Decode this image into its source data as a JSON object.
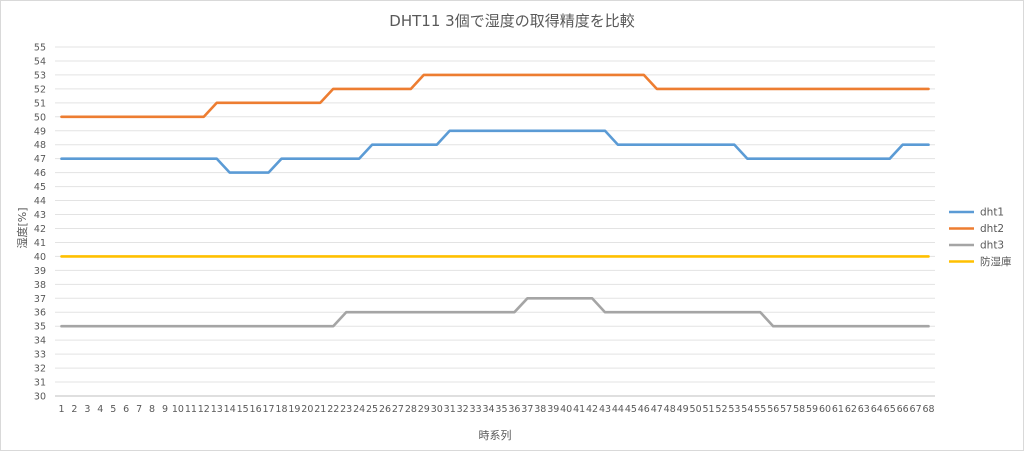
{
  "chart_data": {
    "type": "line",
    "title": "DHT11 3個で湿度の取得精度を比較",
    "xlabel": "時系列",
    "ylabel": "湿度[%]",
    "ylim": [
      30,
      55
    ],
    "ytick_step": 1,
    "grid": true,
    "legend_position": "right",
    "categories": [
      1,
      2,
      3,
      4,
      5,
      6,
      7,
      8,
      9,
      10,
      11,
      12,
      13,
      14,
      15,
      16,
      17,
      18,
      19,
      20,
      21,
      22,
      23,
      24,
      25,
      26,
      27,
      28,
      29,
      30,
      31,
      32,
      33,
      34,
      35,
      36,
      37,
      38,
      39,
      40,
      41,
      42,
      43,
      44,
      45,
      46,
      47,
      48,
      49,
      50,
      51,
      52,
      53,
      54,
      55,
      56,
      57,
      58,
      59,
      60,
      61,
      62,
      63,
      64,
      65,
      66,
      67,
      68
    ],
    "series": [
      {
        "name": "dht1",
        "color": "#5b9bd5",
        "values": [
          47,
          47,
          47,
          47,
          47,
          47,
          47,
          47,
          47,
          47,
          47,
          47,
          47,
          46,
          46,
          46,
          46,
          47,
          47,
          47,
          47,
          47,
          47,
          47,
          48,
          48,
          48,
          48,
          48,
          48,
          49,
          49,
          49,
          49,
          49,
          49,
          49,
          49,
          49,
          49,
          49,
          49,
          49,
          48,
          48,
          48,
          48,
          48,
          48,
          48,
          48,
          48,
          48,
          47,
          47,
          47,
          47,
          47,
          47,
          47,
          47,
          47,
          47,
          47,
          47,
          48,
          48,
          48
        ]
      },
      {
        "name": "dht2",
        "color": "#ed7d31",
        "values": [
          50,
          50,
          50,
          50,
          50,
          50,
          50,
          50,
          50,
          50,
          50,
          50,
          51,
          51,
          51,
          51,
          51,
          51,
          51,
          51,
          51,
          52,
          52,
          52,
          52,
          52,
          52,
          52,
          53,
          53,
          53,
          53,
          53,
          53,
          53,
          53,
          53,
          53,
          53,
          53,
          53,
          53,
          53,
          53,
          53,
          53,
          52,
          52,
          52,
          52,
          52,
          52,
          52,
          52,
          52,
          52,
          52,
          52,
          52,
          52,
          52,
          52,
          52,
          52,
          52,
          52,
          52,
          52
        ]
      },
      {
        "name": "dht3",
        "color": "#a5a5a5",
        "values": [
          35,
          35,
          35,
          35,
          35,
          35,
          35,
          35,
          35,
          35,
          35,
          35,
          35,
          35,
          35,
          35,
          35,
          35,
          35,
          35,
          35,
          35,
          36,
          36,
          36,
          36,
          36,
          36,
          36,
          36,
          36,
          36,
          36,
          36,
          36,
          36,
          37,
          37,
          37,
          37,
          37,
          37,
          36,
          36,
          36,
          36,
          36,
          36,
          36,
          36,
          36,
          36,
          36,
          36,
          36,
          35,
          35,
          35,
          35,
          35,
          35,
          35,
          35,
          35,
          35,
          35,
          35,
          35
        ]
      },
      {
        "name": "防湿庫",
        "color": "#ffc000",
        "values": [
          40,
          40,
          40,
          40,
          40,
          40,
          40,
          40,
          40,
          40,
          40,
          40,
          40,
          40,
          40,
          40,
          40,
          40,
          40,
          40,
          40,
          40,
          40,
          40,
          40,
          40,
          40,
          40,
          40,
          40,
          40,
          40,
          40,
          40,
          40,
          40,
          40,
          40,
          40,
          40,
          40,
          40,
          40,
          40,
          40,
          40,
          40,
          40,
          40,
          40,
          40,
          40,
          40,
          40,
          40,
          40,
          40,
          40,
          40,
          40,
          40,
          40,
          40,
          40,
          40,
          40,
          40,
          40
        ]
      }
    ]
  }
}
